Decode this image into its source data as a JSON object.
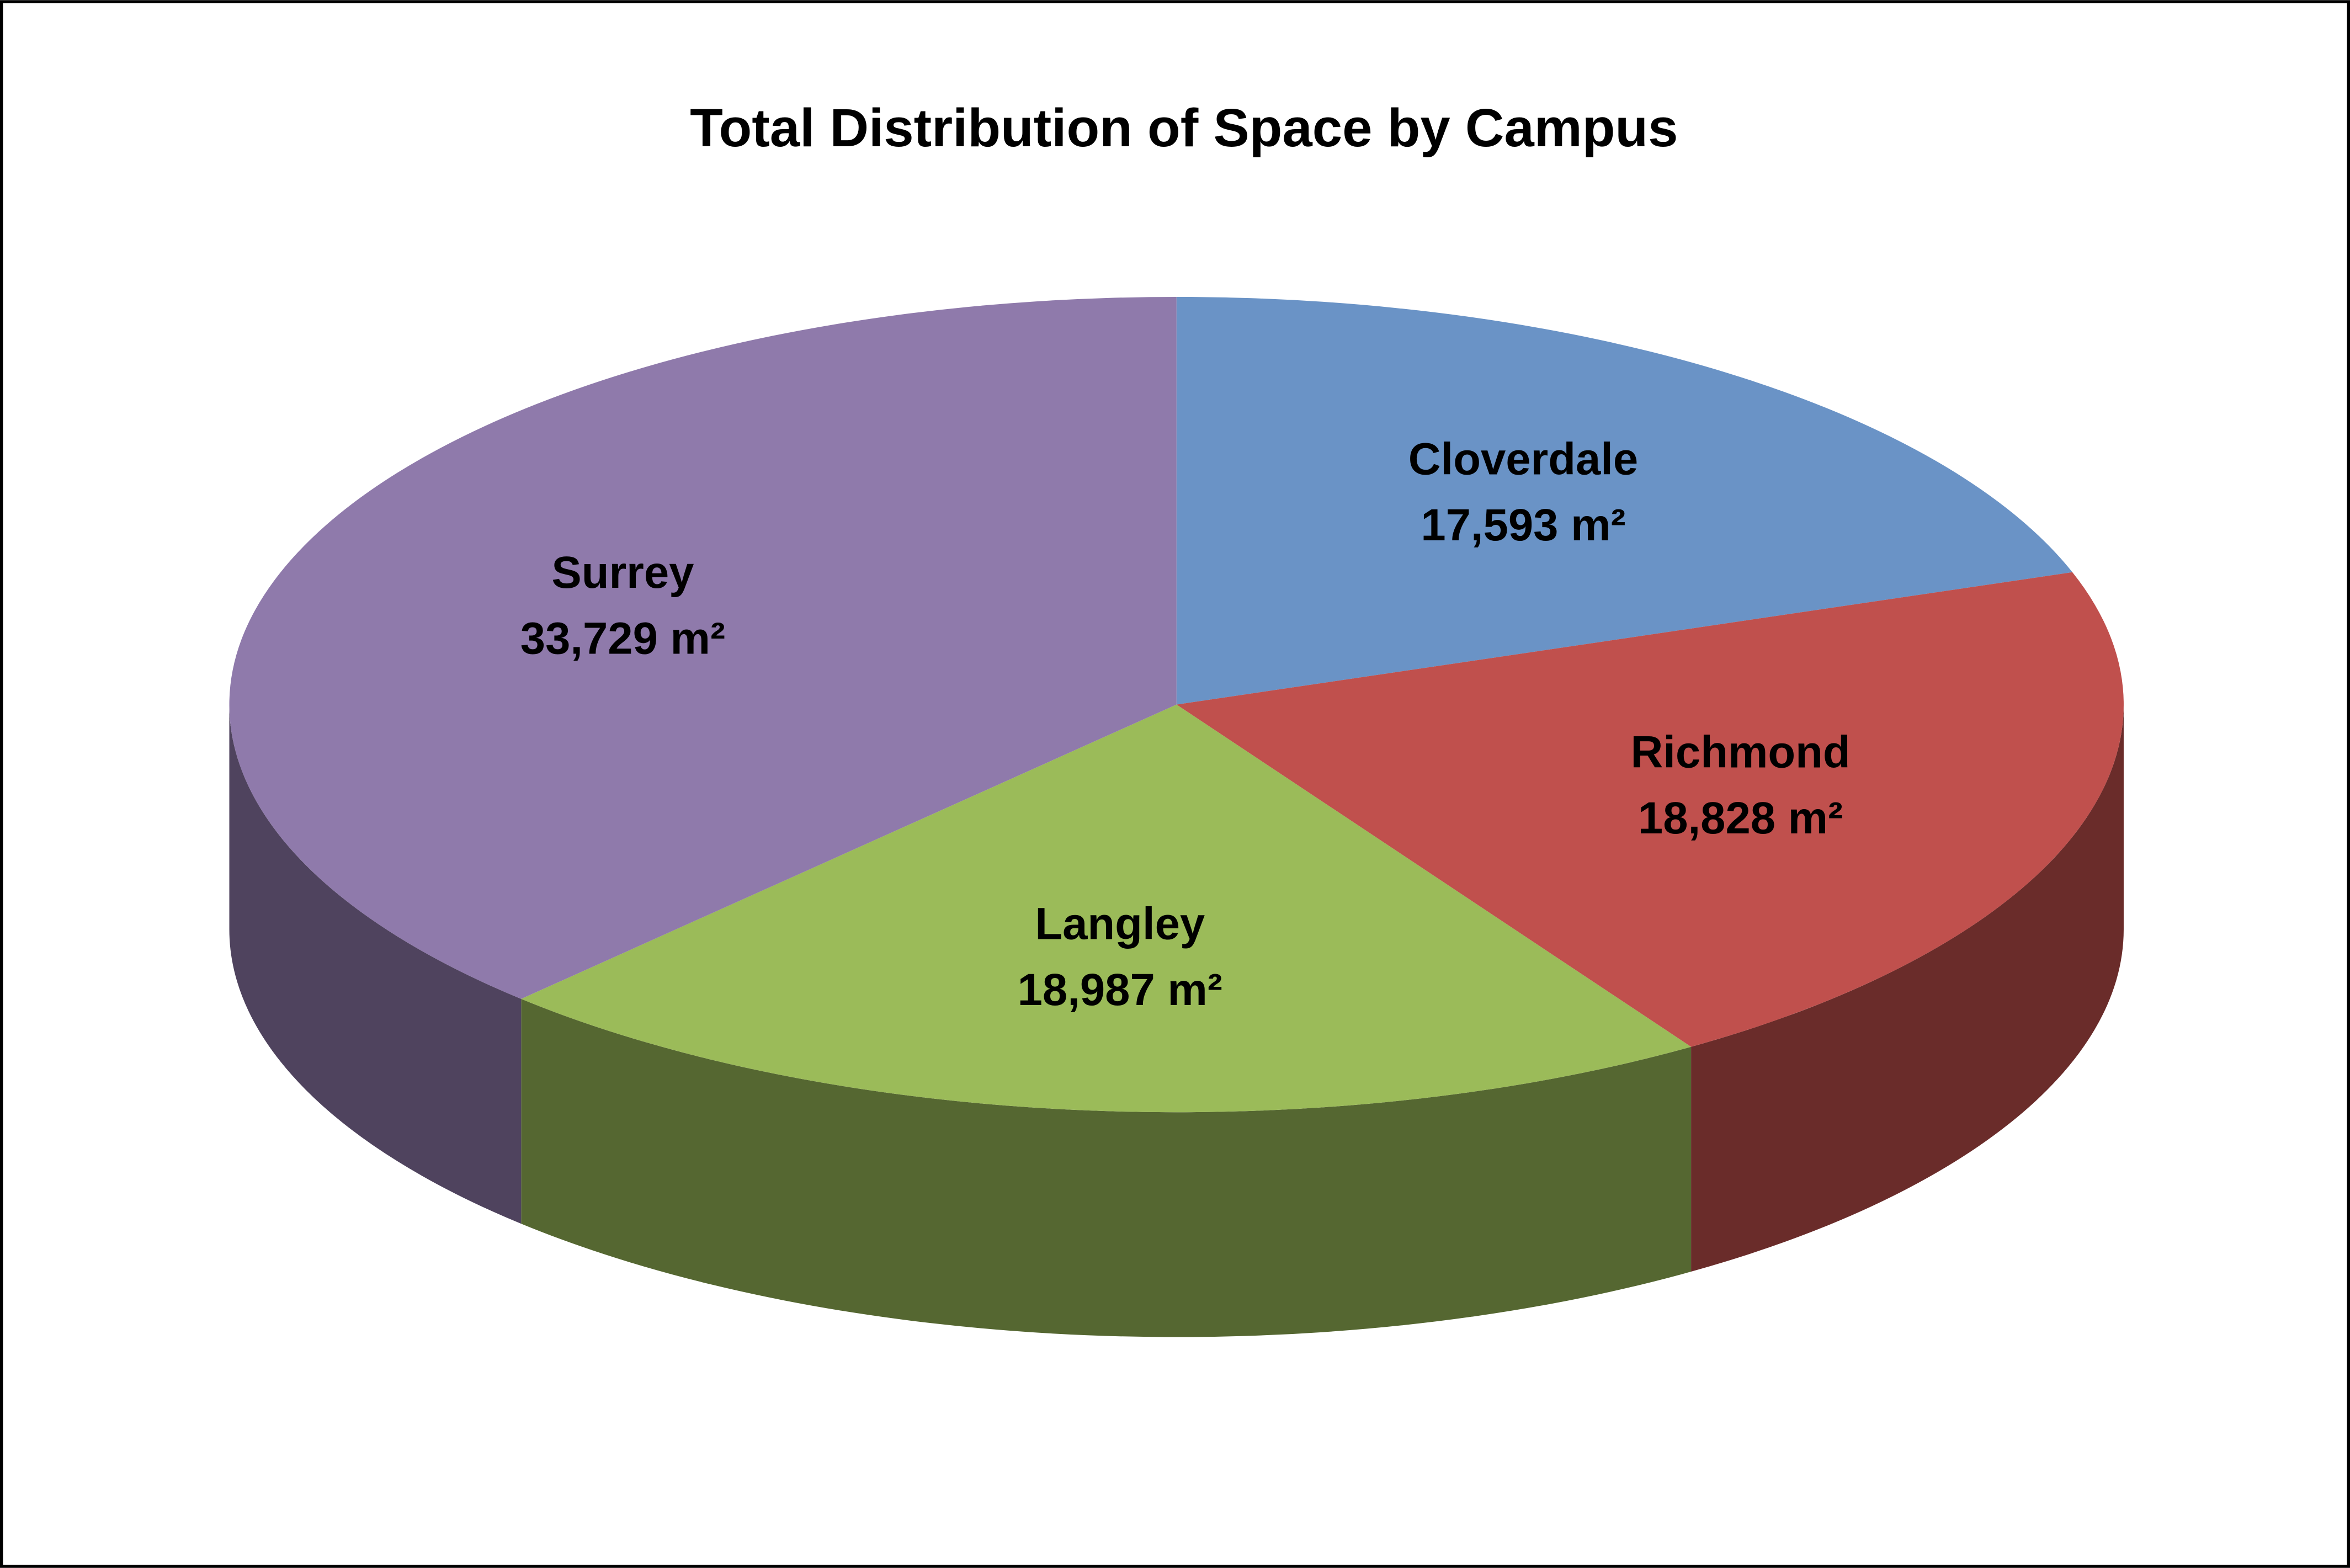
{
  "chart_data": {
    "type": "pie",
    "title": "Total Distribution of Space by Campus",
    "categories": [
      "Cloverdale",
      "Richmond",
      "Langley",
      "Surrey"
    ],
    "values": [
      17593,
      18828,
      18987,
      33729
    ],
    "value_labels": [
      "17,593 m²",
      "18,828 m²",
      "18,987 m²",
      "33,729 m²"
    ],
    "colors": [
      "#6a93c6",
      "#c0504d",
      "#9bbb59",
      "#8f7aab"
    ]
  }
}
